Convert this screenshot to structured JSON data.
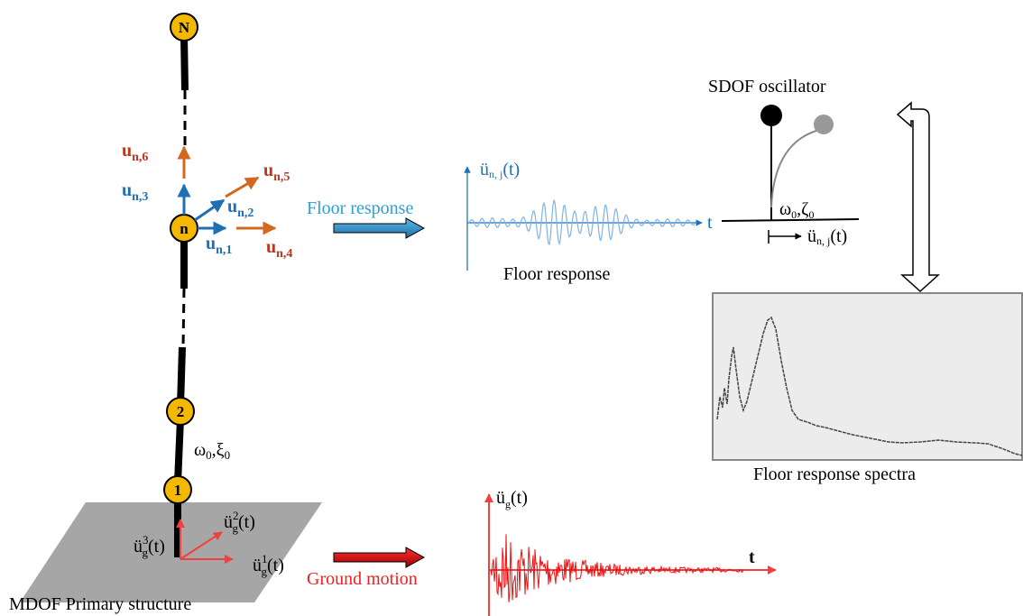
{
  "structure": {
    "nodes": [
      "N",
      "n",
      "2",
      "1"
    ],
    "caption": "MDOF Primary structure",
    "properties": {
      "omega": "ω",
      "omega_sub": "0",
      "sep": ",",
      "damping": "ξ",
      "damping_sub": "0"
    }
  },
  "floor_dofs": [
    {
      "base": "u",
      "sub": "n,6"
    },
    {
      "base": "u",
      "sub": "n,3"
    },
    {
      "base": "u",
      "sub": "n,5"
    },
    {
      "base": "u",
      "sub": "n,2"
    },
    {
      "base": "u",
      "sub": "n,1"
    },
    {
      "base": "u",
      "sub": "n,4"
    }
  ],
  "ground_dofs": [
    {
      "base": "ü",
      "sup": "2",
      "sub": "g",
      "arg": "(t)"
    },
    {
      "base": "ü",
      "sup": "3",
      "sub": "g",
      "arg": "(t)"
    },
    {
      "base": "ü",
      "sup": "1",
      "sub": "g",
      "arg": "(t)"
    }
  ],
  "floor_response": {
    "arrow_label": "Floor response",
    "signal": {
      "base": "ü",
      "sub": "n, j",
      "arg": "(t)"
    },
    "time_axis": "t",
    "caption": "Floor response"
  },
  "oscillator": {
    "title": "SDOF oscillator",
    "omega": "ω",
    "omega_sub": "0",
    "sep": ",",
    "damping": "ζ",
    "damping_sub": "0",
    "input": {
      "base": "ü",
      "sub": "n, j",
      "arg": "(t)"
    }
  },
  "spectra": {
    "caption": "Floor response spectra"
  },
  "ground_motion": {
    "arrow_label": "Ground motion",
    "signal": {
      "base": "ü",
      "sub": "g",
      "arg": "(t)"
    },
    "time_axis": "t"
  }
}
